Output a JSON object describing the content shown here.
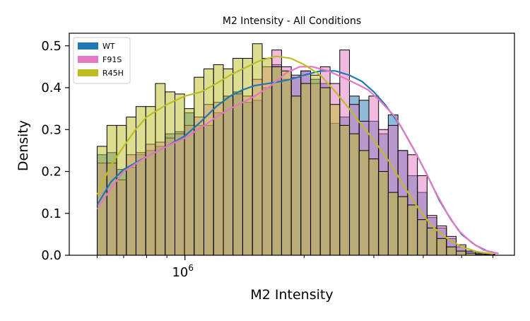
{
  "chart_data": {
    "type": "histogram-with-kde",
    "title": "M2 Intensity - All Conditions",
    "xlabel": "M2 Intensity",
    "ylabel": "Density",
    "x_scale": "log",
    "xlim": [
      510000,
      6800000
    ],
    "ylim": [
      0,
      0.53
    ],
    "x_major_ticks": [
      {
        "value": 1000000,
        "label": "10^6"
      }
    ],
    "x_minor_ticks": [
      600000,
      700000,
      800000,
      900000,
      2000000,
      3000000,
      4000000,
      5000000,
      6000000
    ],
    "y_ticks": [
      0.0,
      0.1,
      0.2,
      0.3,
      0.4,
      0.5
    ],
    "y_tick_labels": [
      "0.0",
      "0.1",
      "0.2",
      "0.3",
      "0.4",
      "0.5"
    ],
    "legend_position": "top-left",
    "bin_edges": [
      600000,
      635000,
      672000,
      711000,
      752000,
      796000,
      842000,
      891000,
      943000,
      997000,
      1055000,
      1116000,
      1181000,
      1250000,
      1322000,
      1399000,
      1481000,
      1567000,
      1658000,
      1754000,
      1856000,
      1963000,
      2077000,
      2198000,
      2326000,
      2461000,
      2604000,
      2755000,
      2915000,
      3084000,
      3263000,
      3453000,
      3653000,
      3866000,
      4090000,
      4328000,
      4579000,
      4845000,
      5126000,
      5424000,
      5739000,
      6072000
    ],
    "series": [
      {
        "name": "WT",
        "color": "#1f77b4",
        "hist": [
          0.24,
          0.245,
          0.205,
          0.21,
          0.24,
          0.25,
          0.26,
          0.29,
          0.295,
          0.34,
          0.31,
          0.31,
          0.34,
          0.38,
          0.39,
          0.365,
          0.37,
          0.4,
          0.455,
          0.42,
          0.425,
          0.44,
          0.42,
          0.41,
          0.315,
          0.33,
          0.38,
          0.37,
          0.32,
          0.29,
          0.335,
          0.25,
          0.19,
          0.15,
          0.09,
          0.065,
          0.04,
          0.02,
          0.01,
          0.005,
          0.002
        ],
        "kde": [
          [
            600000,
            0.12
          ],
          [
            650000,
            0.175
          ],
          [
            700000,
            0.205
          ],
          [
            800000,
            0.235
          ],
          [
            900000,
            0.26
          ],
          [
            1000000,
            0.285
          ],
          [
            1100000,
            0.32
          ],
          [
            1200000,
            0.355
          ],
          [
            1300000,
            0.38
          ],
          [
            1400000,
            0.395
          ],
          [
            1500000,
            0.405
          ],
          [
            1700000,
            0.413
          ],
          [
            1850000,
            0.42
          ],
          [
            2000000,
            0.43
          ],
          [
            2200000,
            0.44
          ],
          [
            2400000,
            0.44
          ],
          [
            2600000,
            0.43
          ],
          [
            2800000,
            0.415
          ],
          [
            3000000,
            0.39
          ],
          [
            3200000,
            0.36
          ],
          [
            3500000,
            0.31
          ],
          [
            3800000,
            0.25
          ],
          [
            4100000,
            0.19
          ],
          [
            4400000,
            0.13
          ],
          [
            4700000,
            0.085
          ],
          [
            5000000,
            0.05
          ],
          [
            5400000,
            0.025
          ],
          [
            5800000,
            0.01
          ],
          [
            6200000,
            0.004
          ]
        ]
      },
      {
        "name": "F91S",
        "color": "#e377c2",
        "hist": [
          0.22,
          0.22,
          0.18,
          0.24,
          0.245,
          0.265,
          0.27,
          0.28,
          0.29,
          0.31,
          0.33,
          0.36,
          0.365,
          0.38,
          0.385,
          0.38,
          0.42,
          0.45,
          0.49,
          0.45,
          0.43,
          0.44,
          0.41,
          0.45,
          0.41,
          0.49,
          0.36,
          0.32,
          0.38,
          0.3,
          0.31,
          0.25,
          0.24,
          0.19,
          0.095,
          0.07,
          0.045,
          0.025,
          0.01,
          0.005,
          0.002
        ],
        "kde": [
          [
            600000,
            0.11
          ],
          [
            650000,
            0.16
          ],
          [
            700000,
            0.2
          ],
          [
            800000,
            0.235
          ],
          [
            900000,
            0.26
          ],
          [
            1000000,
            0.28
          ],
          [
            1100000,
            0.305
          ],
          [
            1200000,
            0.33
          ],
          [
            1300000,
            0.35
          ],
          [
            1400000,
            0.365
          ],
          [
            1500000,
            0.38
          ],
          [
            1650000,
            0.405
          ],
          [
            1800000,
            0.435
          ],
          [
            1950000,
            0.45
          ],
          [
            2100000,
            0.45
          ],
          [
            2300000,
            0.44
          ],
          [
            2500000,
            0.425
          ],
          [
            2700000,
            0.41
          ],
          [
            2900000,
            0.395
          ],
          [
            3100000,
            0.37
          ],
          [
            3400000,
            0.33
          ],
          [
            3700000,
            0.27
          ],
          [
            4000000,
            0.21
          ],
          [
            4300000,
            0.15
          ],
          [
            4600000,
            0.1
          ],
          [
            4900000,
            0.06
          ],
          [
            5300000,
            0.03
          ],
          [
            5700000,
            0.012
          ],
          [
            6200000,
            0.004
          ]
        ]
      },
      {
        "name": "R45H",
        "color": "#bcbd22",
        "hist": [
          0.26,
          0.31,
          0.31,
          0.33,
          0.355,
          0.355,
          0.41,
          0.39,
          0.385,
          0.35,
          0.425,
          0.445,
          0.455,
          0.445,
          0.47,
          0.47,
          0.505,
          0.47,
          0.45,
          0.44,
          0.38,
          0.41,
          0.43,
          0.4,
          0.36,
          0.31,
          0.29,
          0.25,
          0.23,
          0.2,
          0.15,
          0.14,
          0.12,
          0.085,
          0.065,
          0.04,
          0.02,
          0.01,
          0.005,
          0.002,
          0.001
        ],
        "kde": [
          [
            600000,
            0.145
          ],
          [
            650000,
            0.215
          ],
          [
            700000,
            0.26
          ],
          [
            750000,
            0.3
          ],
          [
            800000,
            0.33
          ],
          [
            900000,
            0.36
          ],
          [
            1000000,
            0.38
          ],
          [
            1100000,
            0.39
          ],
          [
            1200000,
            0.41
          ],
          [
            1300000,
            0.43
          ],
          [
            1400000,
            0.445
          ],
          [
            1550000,
            0.465
          ],
          [
            1700000,
            0.475
          ],
          [
            1850000,
            0.47
          ],
          [
            2000000,
            0.455
          ],
          [
            2200000,
            0.43
          ],
          [
            2400000,
            0.39
          ],
          [
            2600000,
            0.35
          ],
          [
            2800000,
            0.31
          ],
          [
            3000000,
            0.275
          ],
          [
            3300000,
            0.22
          ],
          [
            3600000,
            0.16
          ],
          [
            3900000,
            0.11
          ],
          [
            4200000,
            0.07
          ],
          [
            4600000,
            0.04
          ],
          [
            5000000,
            0.02
          ],
          [
            5500000,
            0.008
          ],
          [
            6000000,
            0.003
          ]
        ]
      }
    ]
  }
}
